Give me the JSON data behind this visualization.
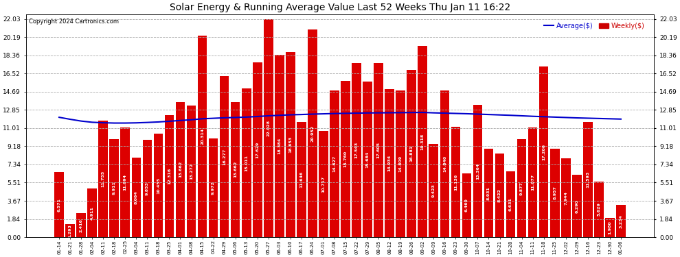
{
  "title": "Solar Energy & Running Average Value Last 52 Weeks Thu Jan 11 16:22",
  "copyright": "Copyright 2024 Cartronics.com",
  "dates": [
    "01-14",
    "01-21",
    "01-28",
    "02-04",
    "02-11",
    "02-18",
    "02-25",
    "03-04",
    "03-11",
    "03-18",
    "03-25",
    "04-01",
    "04-08",
    "04-15",
    "04-22",
    "04-29",
    "05-06",
    "05-13",
    "05-20",
    "05-27",
    "06-03",
    "06-10",
    "06-17",
    "06-24",
    "07-01",
    "07-08",
    "07-15",
    "07-22",
    "07-29",
    "08-05",
    "08-12",
    "08-19",
    "08-26",
    "09-02",
    "09-09",
    "09-16",
    "09-23",
    "09-30",
    "10-07",
    "10-14",
    "10-21",
    "10-28",
    "11-04",
    "11-11",
    "11-18",
    "11-25",
    "12-02",
    "12-09",
    "12-16",
    "12-23",
    "12-30",
    "01-06"
  ],
  "weekly_vals": [
    6.571,
    1.293,
    2.416,
    4.911,
    11.755,
    9.911,
    11.094,
    8.064,
    9.853,
    10.455,
    12.316,
    13.662,
    13.272,
    20.314,
    9.972,
    16.277,
    13.662,
    15.011,
    17.629,
    22.028,
    18.384,
    18.653,
    11.646,
    20.952,
    10.717,
    14.827,
    15.76,
    17.543,
    15.684,
    17.605,
    14.934,
    14.809,
    16.881,
    19.318,
    9.423,
    14.84,
    11.136,
    6.46,
    13.364,
    8.931,
    8.422,
    6.631,
    9.877,
    11.077,
    17.206,
    8.957,
    7.944,
    6.29,
    11.593,
    5.629,
    1.98,
    3.234
  ],
  "avg_vals": [
    12.1,
    11.9,
    11.72,
    11.6,
    11.55,
    11.52,
    11.52,
    11.54,
    11.58,
    11.63,
    11.7,
    11.78,
    11.85,
    11.95,
    12.0,
    12.05,
    12.08,
    12.12,
    12.18,
    12.25,
    12.3,
    12.35,
    12.38,
    12.42,
    12.45,
    12.48,
    12.5,
    12.52,
    12.54,
    12.55,
    12.56,
    12.57,
    12.58,
    12.59,
    12.55,
    12.52,
    12.49,
    12.46,
    12.42,
    12.38,
    12.34,
    12.3,
    12.25,
    12.2,
    12.16,
    12.12,
    12.08,
    12.04,
    12.01,
    11.98,
    11.95,
    11.92
  ],
  "bar_color": "#dd0000",
  "avg_color": "#0000cc",
  "weekly_color": "#cc0000",
  "yticks": [
    0.0,
    1.84,
    3.67,
    5.51,
    7.34,
    9.18,
    11.01,
    12.85,
    14.69,
    16.52,
    18.36,
    20.19,
    22.03
  ],
  "background_color": "#ffffff",
  "grid_color": "#aaaaaa",
  "ylim_max": 22.5,
  "bar_width": 0.85,
  "label_fontsize": 4.5,
  "tick_fontsize": 6.5,
  "title_fontsize": 10
}
